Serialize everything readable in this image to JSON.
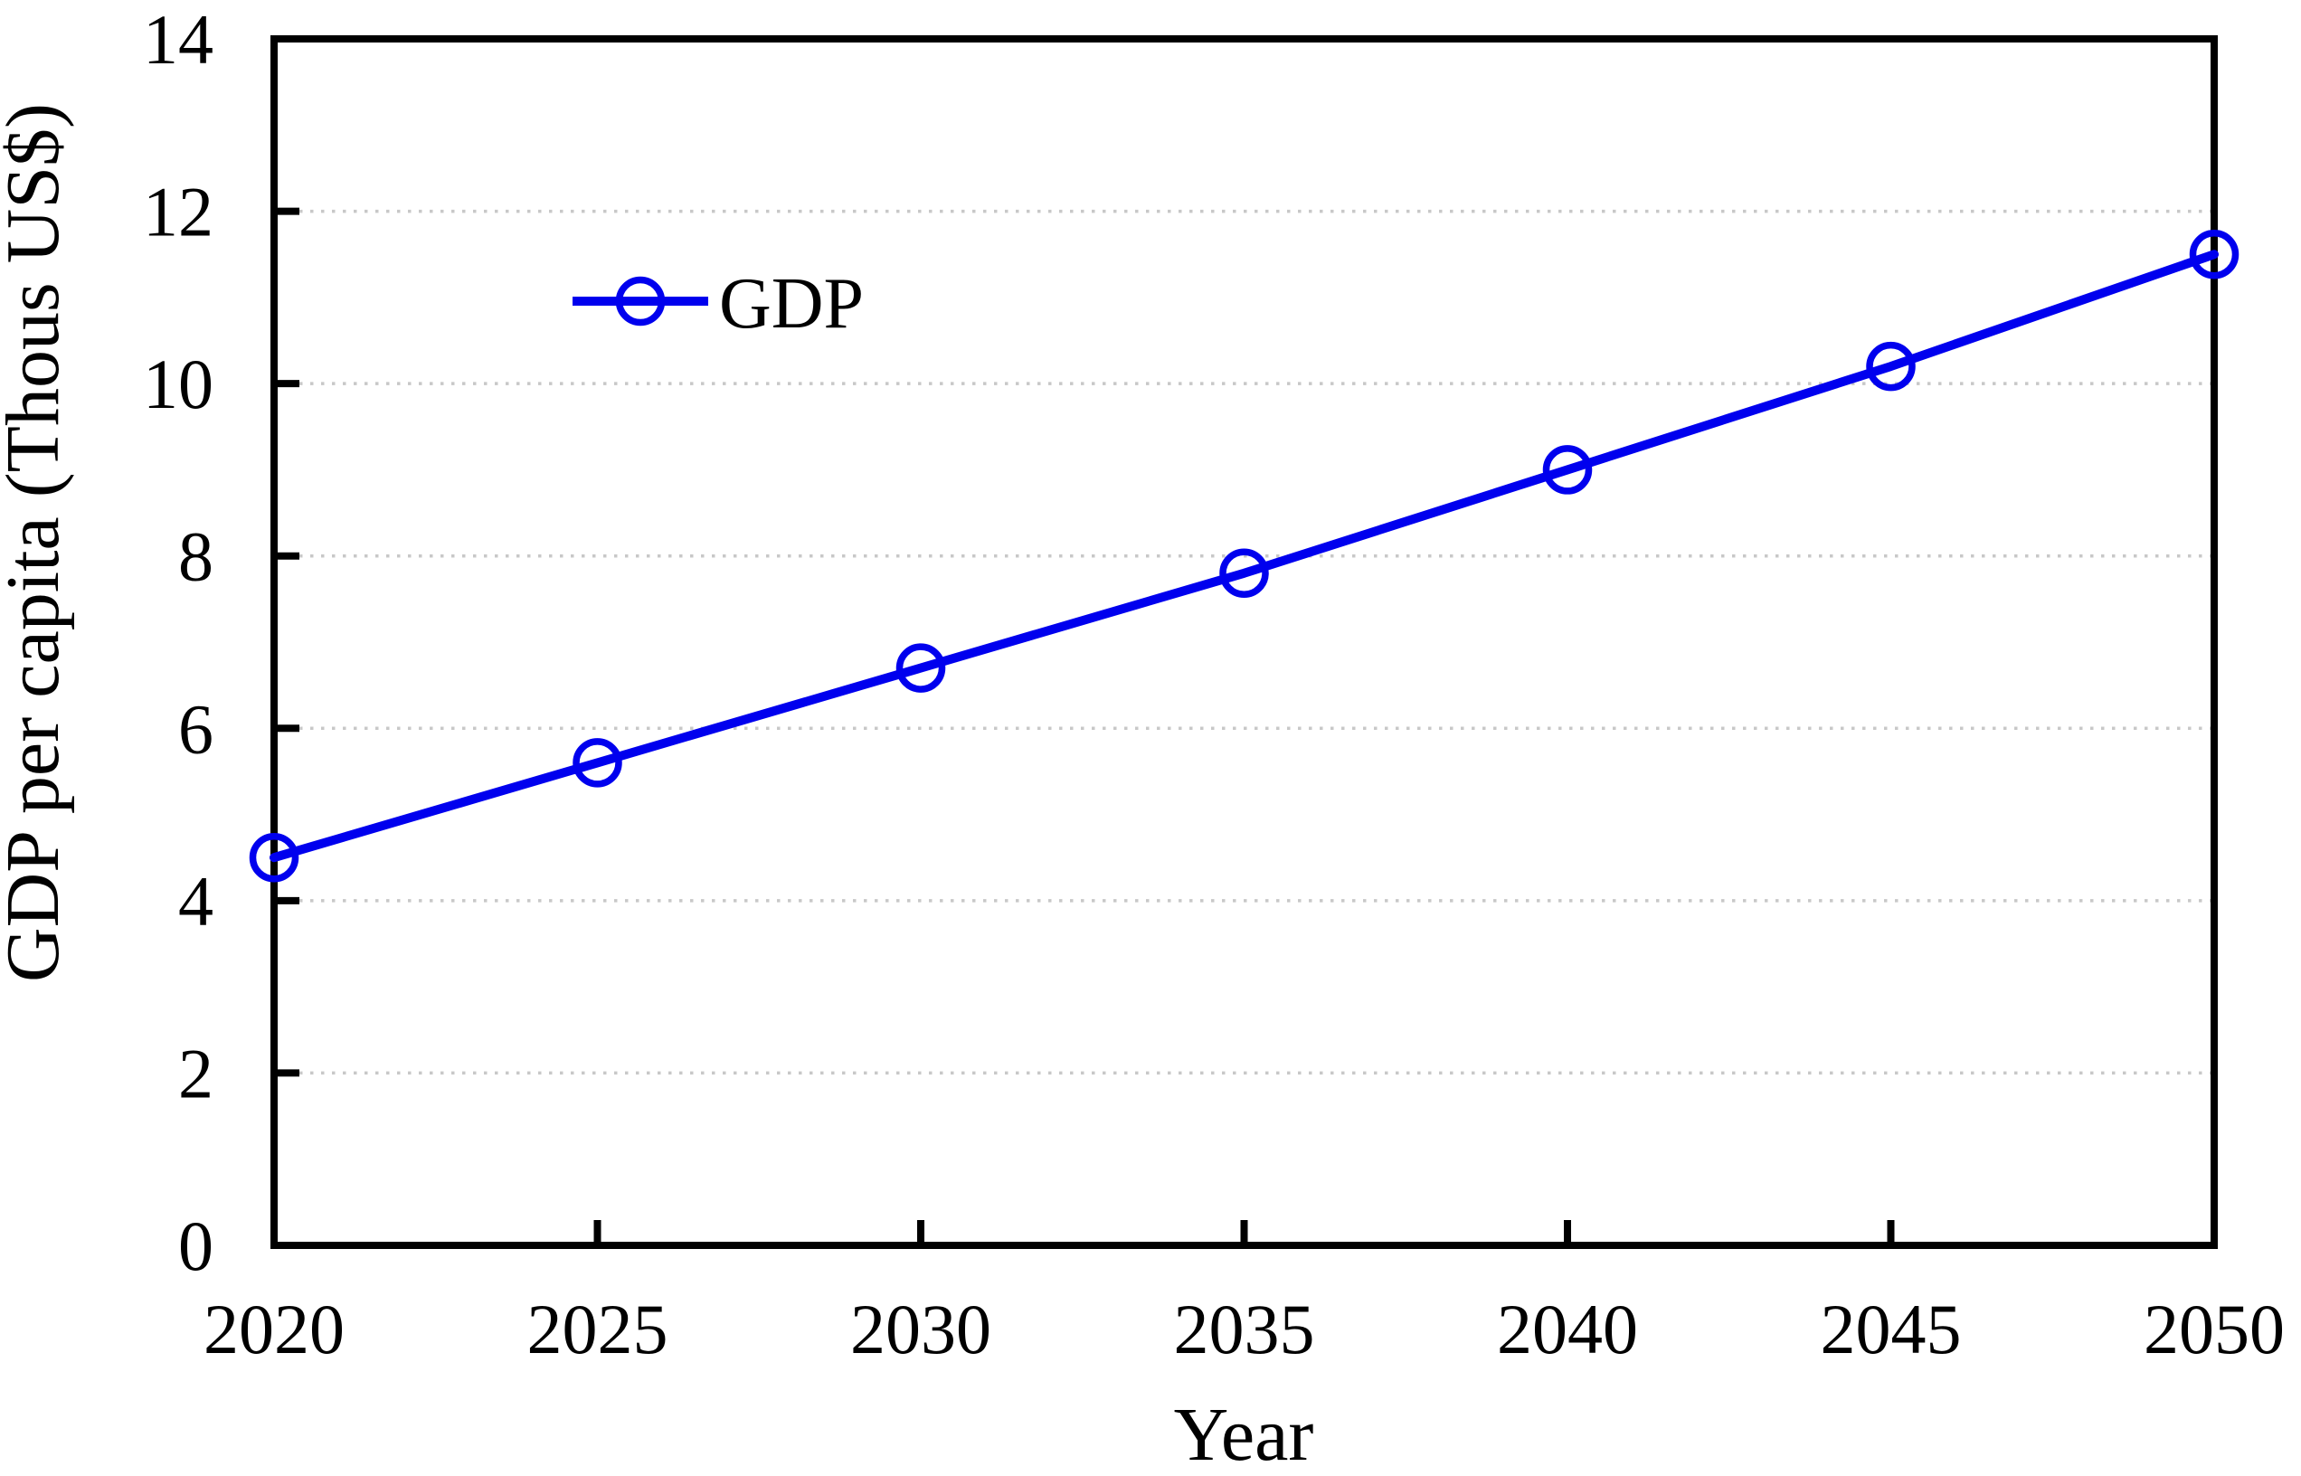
{
  "figure": {
    "background": "#ffffff"
  },
  "chart_data": {
    "type": "line",
    "title": "",
    "xlabel": "Year",
    "ylabel": "GDP per capita (Thous US$)",
    "x": [
      2020,
      2025,
      2030,
      2035,
      2040,
      2045,
      2050
    ],
    "x_tick_labels": [
      "2020",
      "2025",
      "2030",
      "2035",
      "2040",
      "2045",
      "2050"
    ],
    "y_ticks": [
      0,
      2,
      4,
      6,
      8,
      10,
      12,
      14
    ],
    "y_tick_labels": [
      "0",
      "2",
      "4",
      "6",
      "8",
      "10",
      "12",
      "14"
    ],
    "xlim": [
      2020,
      2050
    ],
    "ylim": [
      0,
      14
    ],
    "grid": "horizontal dotted",
    "legend_position": "inside upper-left",
    "series": [
      {
        "name": "GDP",
        "marker": "open-circle",
        "color": "#0000ee",
        "values": [
          4.5,
          5.6,
          6.7,
          7.8,
          9.0,
          10.2,
          11.5
        ]
      }
    ],
    "colors": {
      "axis": "#000000",
      "grid": "#c8c8c8",
      "text": "#000000",
      "line": "#0000ee",
      "background": "#ffffff"
    }
  }
}
